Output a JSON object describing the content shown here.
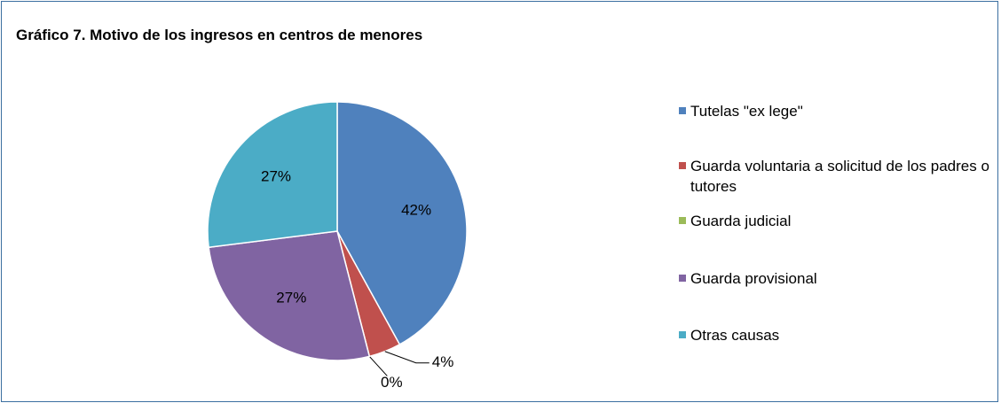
{
  "chart_data": {
    "type": "pie",
    "title": "Gráfico 7. Motivo de los ingresos en centros de menores",
    "categories": [
      "Tutelas \"ex lege\"",
      "Guarda voluntaria a solicitud de los padres o tutores",
      "Guarda judicial",
      "Guarda provisional",
      "Otras causas"
    ],
    "values": [
      42,
      4,
      0,
      27,
      27
    ],
    "value_labels": [
      "42%",
      "4%",
      "0%",
      "27%",
      "27%"
    ],
    "colors": [
      "#4f81bd",
      "#c0504d",
      "#9bbb59",
      "#8064a2",
      "#4bacc6"
    ],
    "legend": "right"
  }
}
